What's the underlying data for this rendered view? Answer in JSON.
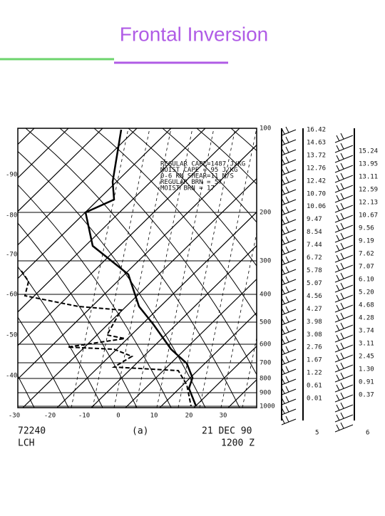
{
  "header": {
    "title": "Frontal Inversion"
  },
  "diagram": {
    "pressure_labels": [
      "100",
      "200",
      "300",
      "400",
      "500",
      "600",
      "700",
      "800",
      "900",
      "1000"
    ],
    "temperature_left_labels": [
      "-90",
      "-80",
      "-70",
      "-60",
      "-50",
      "-40"
    ],
    "temperature_bottom_labels": [
      "-30",
      "-20",
      "-10",
      "0",
      "10",
      "20",
      "30"
    ],
    "indices": [
      "REGULAR CAPE=1487 J/KG",
      "MOIST CAPE = 95  J/KG",
      "0-6 KM SHEAR=11  M/S",
      "REGULAR BRN = 57",
      "MOIST BRN  = 17"
    ],
    "station": "72240",
    "station_name": "LCH",
    "panel": "(a)",
    "date": "21 DEC 90",
    "time": "1200 Z",
    "column1": [
      "16.42",
      "14.63",
      "13.72",
      "12.76",
      "12.42",
      "10.70",
      "10.06",
      "9.47",
      "8.54",
      "7.44",
      "6.72",
      "5.78",
      "5.07",
      "4.56",
      "4.27",
      "3.98",
      "3.08",
      "2.76",
      "1.67",
      "1.22",
      "0.61",
      "0.01",
      "5"
    ],
    "column2": [
      "15.24",
      "13.95",
      "13.11",
      "12.59",
      "12.13",
      "10.67",
      "9.56",
      "9.19",
      "7.62",
      "7.07",
      "6.10",
      "5.20",
      "4.68",
      "4.28",
      "3.74",
      "3.11",
      "2.45",
      "1.30",
      "0.91",
      "0.37",
      "6"
    ]
  }
}
